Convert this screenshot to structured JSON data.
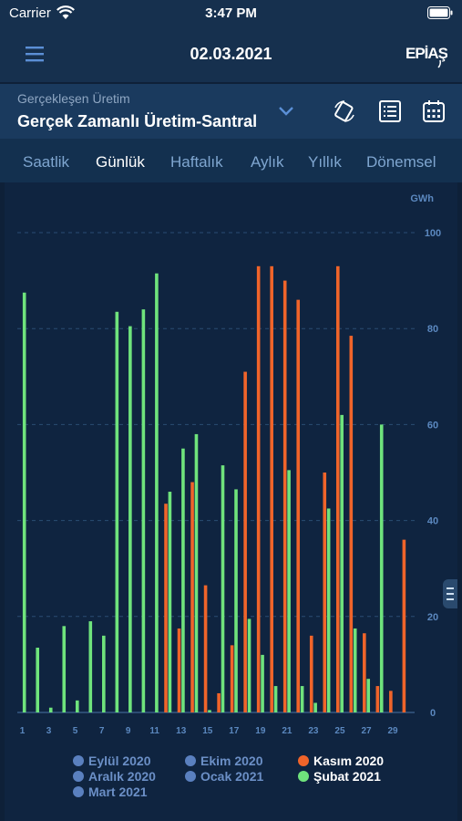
{
  "status": {
    "carrier": "Carrier",
    "time": "3:47 PM"
  },
  "nav": {
    "date": "02.03.2021",
    "logo": "EPİAŞ"
  },
  "selector": {
    "subtitle": "Gerçekleşen Üretim",
    "title": "Gerçek Zamanlı Üretim-Santral"
  },
  "tabs": [
    {
      "label": "Saatlik",
      "active": false
    },
    {
      "label": "Günlük",
      "active": true
    },
    {
      "label": "Haftalık",
      "active": false
    },
    {
      "label": "Aylık",
      "active": false
    },
    {
      "label": "Yıllık",
      "active": false
    },
    {
      "label": "Dönemsel",
      "active": false
    }
  ],
  "colors": {
    "kasim": "#f0642a",
    "subat": "#6fe37c",
    "inactive_series": "#5a80bf",
    "grid": "#2a4d73",
    "axis_text": "#5b88bf"
  },
  "chart_data": {
    "type": "bar",
    "unit": "GWh",
    "ylim": [
      0,
      100
    ],
    "yticks": [
      0,
      20,
      40,
      60,
      80,
      100
    ],
    "x": [
      1,
      2,
      3,
      4,
      5,
      6,
      7,
      8,
      9,
      10,
      11,
      12,
      13,
      14,
      15,
      16,
      17,
      18,
      19,
      20,
      21,
      22,
      23,
      24,
      25,
      26,
      27,
      28,
      29,
      30
    ],
    "xtick_labels": [
      "1",
      "3",
      "5",
      "7",
      "9",
      "11",
      "13",
      "15",
      "17",
      "19",
      "21",
      "23",
      "25",
      "27",
      "29"
    ],
    "grid": "dashed horizontal",
    "series": [
      {
        "name": "Kasım 2020",
        "color": "#f0642a",
        "values": [
          0,
          0,
          0,
          0,
          0,
          0,
          0,
          0,
          0,
          0,
          0,
          43.5,
          17.5,
          48,
          26.5,
          4,
          14,
          71,
          93,
          93,
          90,
          86,
          16,
          50,
          93,
          78.5,
          16.5,
          5.5,
          4.5,
          36
        ]
      },
      {
        "name": "Şubat 2021",
        "color": "#6fe37c",
        "values": [
          87.5,
          13.5,
          1,
          18,
          2.5,
          19,
          16,
          83.5,
          80.5,
          84,
          91.5,
          46,
          55,
          58,
          0.5,
          51.5,
          46.5,
          19.5,
          12,
          5.5,
          50.5,
          5.5,
          2,
          42.5,
          62,
          17.5,
          7,
          60,
          0,
          0
        ]
      }
    ]
  },
  "legend": [
    {
      "label": "Eylül 2020",
      "color": "#5a80bf",
      "active": false
    },
    {
      "label": "Ekim 2020",
      "color": "#5a80bf",
      "active": false
    },
    {
      "label": "Kasım 2020",
      "color": "#f0642a",
      "active": true
    },
    {
      "label": "Aralık 2020",
      "color": "#5a80bf",
      "active": false
    },
    {
      "label": "Ocak 2021",
      "color": "#5a80bf",
      "active": false
    },
    {
      "label": "Şubat 2021",
      "color": "#6fe37c",
      "active": true
    },
    {
      "label": "Mart 2021",
      "color": "#5a80bf",
      "active": false
    }
  ]
}
